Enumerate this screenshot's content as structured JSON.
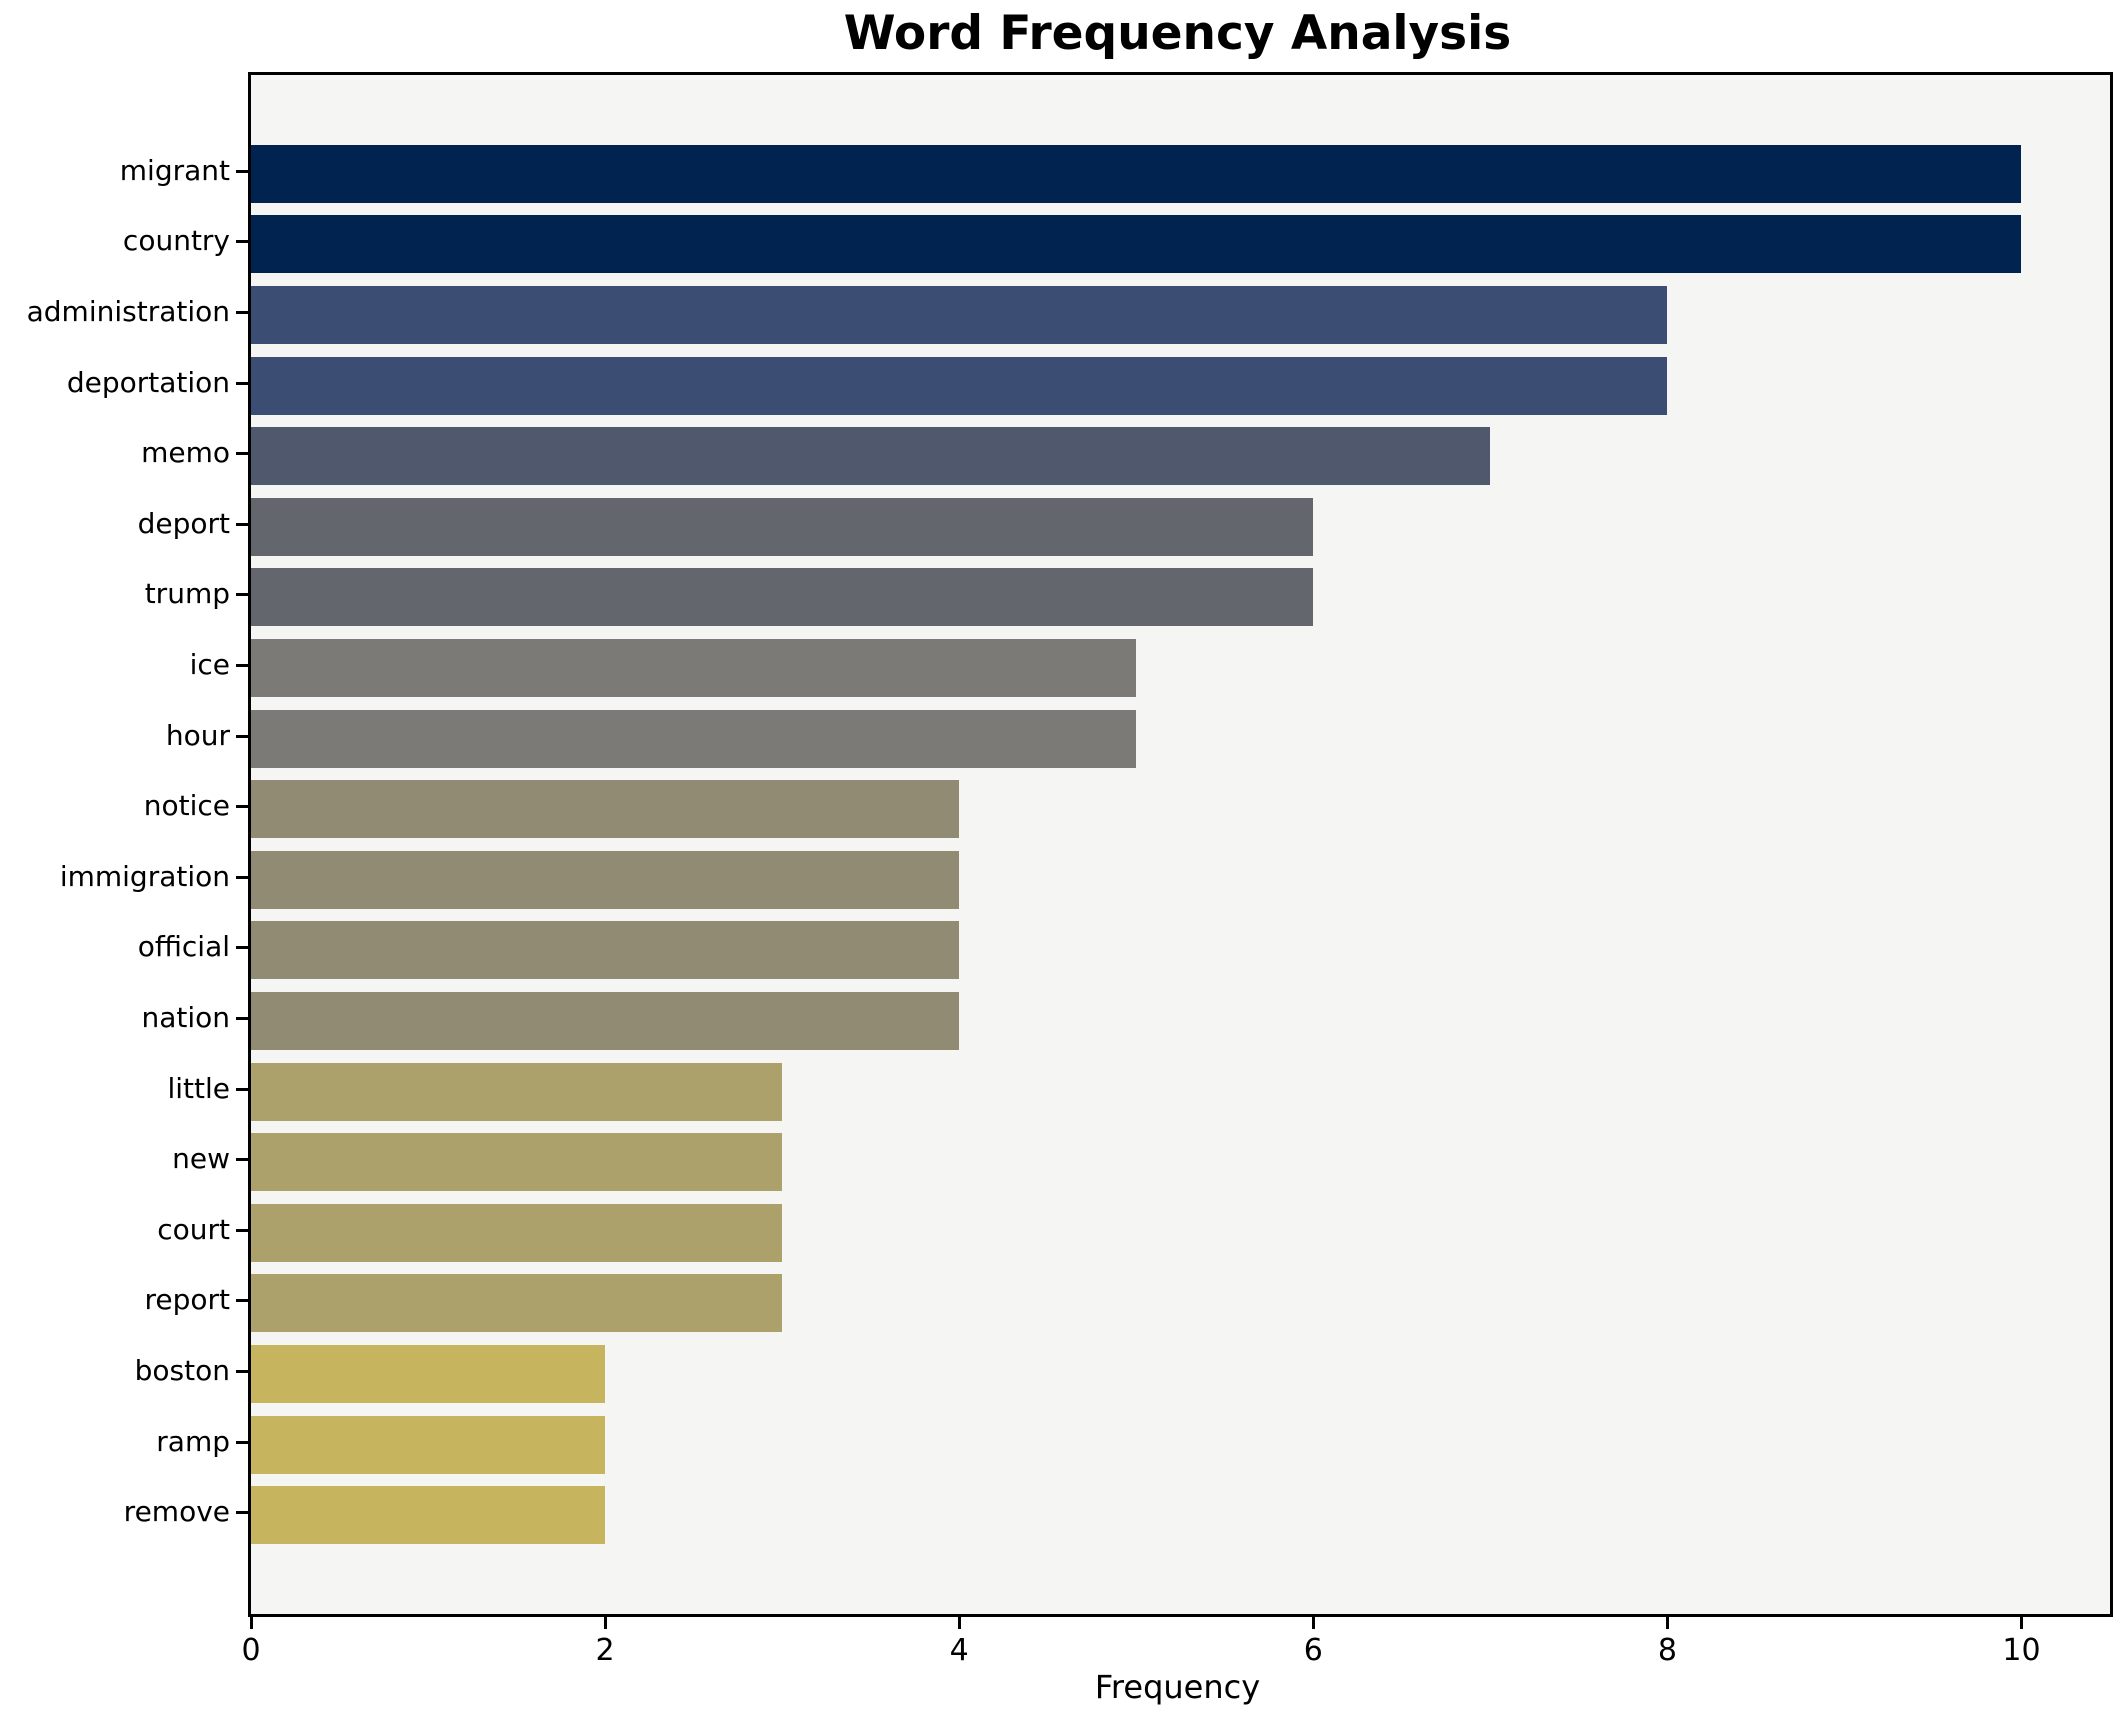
{
  "chart_data": {
    "type": "bar",
    "orientation": "horizontal",
    "title": "Word Frequency Analysis",
    "xlabel": "Frequency",
    "ylabel": "",
    "xlim": [
      0,
      10.5
    ],
    "x_ticks": [
      0,
      2,
      4,
      6,
      8,
      10
    ],
    "grid": false,
    "legend": null,
    "plot_background": "#f5f5f4",
    "figure_background": "#ffffff",
    "categories": [
      "migrant",
      "country",
      "administration",
      "deportation",
      "memo",
      "deport",
      "trump",
      "ice",
      "hour",
      "notice",
      "immigration",
      "official",
      "nation",
      "little",
      "new",
      "court",
      "report",
      "boston",
      "ramp",
      "remove"
    ],
    "values": [
      10,
      10,
      8,
      8,
      7,
      6,
      6,
      5,
      5,
      4,
      4,
      4,
      4,
      3,
      3,
      3,
      3,
      2,
      2,
      2
    ],
    "bar_colors": [
      "#012350",
      "#012350",
      "#3b4d73",
      "#3b4d73",
      "#4f586d",
      "#64666e",
      "#64666e",
      "#7b7a77",
      "#7b7a77",
      "#918b74",
      "#918b74",
      "#918b74",
      "#918b74",
      "#aca06b",
      "#aca06b",
      "#aca06b",
      "#aca06b",
      "#c7b45e",
      "#c7b45e",
      "#c7b45e"
    ]
  }
}
